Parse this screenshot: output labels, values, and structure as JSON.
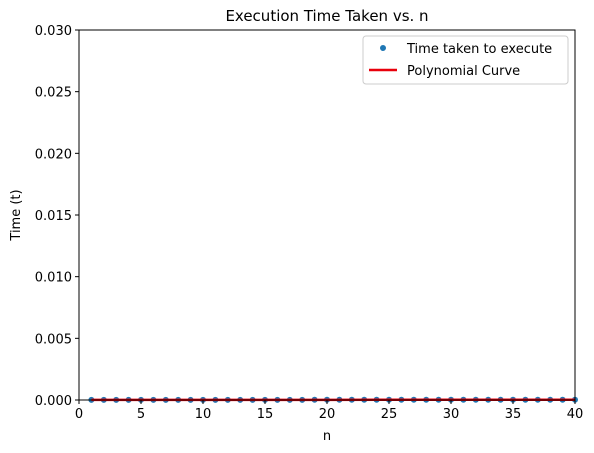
{
  "chart_data": {
    "type": "scatter",
    "title": "Execution Time Taken vs. n",
    "xlabel": "n",
    "ylabel": "Time (t)",
    "xlim": [
      0,
      40
    ],
    "ylim": [
      0,
      0.03
    ],
    "xticks": [
      0,
      5,
      10,
      15,
      20,
      25,
      30,
      35,
      40
    ],
    "xtick_labels": [
      "0",
      "5",
      "10",
      "15",
      "20",
      "25",
      "30",
      "35",
      "40"
    ],
    "yticks": [
      0,
      0.005,
      0.01,
      0.015,
      0.02,
      0.025,
      0.03
    ],
    "ytick_labels": [
      "0.000",
      "0.005",
      "0.010",
      "0.015",
      "0.020",
      "0.025",
      "0.030"
    ],
    "grid": false,
    "legend_position": "top-right",
    "series": [
      {
        "name": "Time taken to execute",
        "kind": "points",
        "color": "#1f77b4",
        "x": [
          1,
          2,
          3,
          4,
          5,
          6,
          7,
          8,
          9,
          10,
          11,
          12,
          13,
          14,
          15,
          16,
          17,
          18,
          19,
          20,
          21,
          22,
          23,
          24,
          25,
          26,
          27,
          28,
          29,
          30,
          31,
          32,
          33,
          34,
          35,
          36,
          37,
          38,
          39,
          40
        ],
        "y": [
          1e-05,
          1e-05,
          1e-05,
          1e-05,
          1e-05,
          1e-05,
          1e-05,
          1e-05,
          1e-05,
          1e-05,
          1e-05,
          1e-05,
          1e-05,
          1e-05,
          1e-05,
          1e-05,
          1e-05,
          1e-05,
          2e-05,
          2e-05,
          2e-05,
          2e-05,
          2e-05,
          2e-05,
          2e-05,
          2e-05,
          2e-05,
          2e-05,
          2e-05,
          2e-05,
          2e-05,
          2e-05,
          2e-05,
          2e-05,
          2e-05,
          2e-05,
          2e-05,
          2e-05,
          2e-05,
          2e-05
        ]
      },
      {
        "name": "Polynomial Curve",
        "kind": "line",
        "color": "#e8000b",
        "x": [
          1,
          5,
          10,
          15,
          20,
          25,
          30,
          35,
          40
        ],
        "y": [
          1e-05,
          1e-05,
          1e-05,
          1e-05,
          1e-05,
          2e-05,
          2e-05,
          2e-05,
          2e-05
        ]
      }
    ]
  }
}
